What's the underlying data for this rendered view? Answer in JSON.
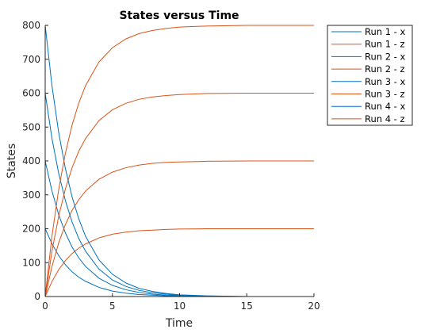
{
  "chart_data": {
    "type": "line",
    "title": "States versus Time",
    "xlabel": "Time",
    "ylabel": "States",
    "xlim": [
      0,
      20
    ],
    "ylim": [
      0,
      800
    ],
    "xticks": [
      0,
      5,
      10,
      15,
      20
    ],
    "yticks": [
      0,
      100,
      200,
      300,
      400,
      500,
      600,
      700,
      800
    ],
    "grid": false,
    "legend_position": "top-right, outside plot",
    "colors": {
      "x": "#0072BD",
      "z": "#D95319"
    },
    "series": [
      {
        "name": "Run 1 - x",
        "kind": "x",
        "x": [
          0,
          0.5,
          1,
          1.5,
          2,
          2.5,
          3,
          4,
          5,
          6,
          7,
          8,
          9,
          10,
          12,
          15,
          20
        ],
        "y": [
          200,
          156,
          121,
          94,
          73,
          57,
          45,
          27,
          16,
          10,
          6,
          4,
          2,
          1,
          0,
          0,
          0
        ]
      },
      {
        "name": "Run 1 - z",
        "kind": "z",
        "x": [
          0,
          0.5,
          1,
          1.5,
          2,
          2.5,
          3,
          4,
          5,
          6,
          7,
          8,
          9,
          10,
          12,
          15,
          20
        ],
        "y": [
          0,
          44,
          79,
          106,
          127,
          143,
          155,
          173,
          184,
          190,
          194,
          196,
          198,
          199,
          200,
          200,
          200
        ]
      },
      {
        "name": "Run 2 - x",
        "kind": "x",
        "x": [
          0,
          0.5,
          1,
          1.5,
          2,
          2.5,
          3,
          4,
          5,
          6,
          7,
          8,
          9,
          10,
          12,
          15,
          20
        ],
        "y": [
          400,
          312,
          242,
          188,
          146,
          114,
          89,
          54,
          33,
          20,
          12,
          7,
          4,
          3,
          1,
          0,
          0
        ]
      },
      {
        "name": "Run 2 - z",
        "kind": "z",
        "x": [
          0,
          0.5,
          1,
          1.5,
          2,
          2.5,
          3,
          4,
          5,
          6,
          7,
          8,
          9,
          10,
          12,
          15,
          20
        ],
        "y": [
          0,
          88,
          158,
          212,
          254,
          286,
          311,
          346,
          367,
          380,
          388,
          393,
          396,
          397,
          399,
          400,
          400
        ]
      },
      {
        "name": "Run 3 - x",
        "kind": "x",
        "x": [
          0,
          0.5,
          1,
          1.5,
          2,
          2.5,
          3,
          4,
          5,
          6,
          7,
          8,
          9,
          10,
          12,
          15,
          20
        ],
        "y": [
          600,
          467,
          364,
          283,
          220,
          171,
          134,
          81,
          49,
          30,
          18,
          11,
          7,
          4,
          1,
          0,
          0
        ]
      },
      {
        "name": "Run 3 - z",
        "kind": "z",
        "x": [
          0,
          0.5,
          1,
          1.5,
          2,
          2.5,
          3,
          4,
          5,
          6,
          7,
          8,
          9,
          10,
          12,
          15,
          20
        ],
        "y": [
          0,
          133,
          236,
          317,
          380,
          429,
          466,
          519,
          551,
          570,
          582,
          589,
          593,
          596,
          599,
          600,
          600
        ]
      },
      {
        "name": "Run 4 - x",
        "kind": "x",
        "x": [
          0,
          0.5,
          1,
          1.5,
          2,
          2.5,
          3,
          4,
          5,
          6,
          7,
          8,
          9,
          10,
          12,
          15,
          20
        ],
        "y": [
          800,
          623,
          485,
          378,
          294,
          229,
          178,
          108,
          66,
          40,
          24,
          15,
          9,
          5,
          2,
          0,
          0
        ]
      },
      {
        "name": "Run 4 - z",
        "kind": "z",
        "x": [
          0,
          0.5,
          1,
          1.5,
          2,
          2.5,
          3,
          4,
          5,
          6,
          7,
          8,
          9,
          10,
          12,
          15,
          20
        ],
        "y": [
          0,
          177,
          315,
          422,
          506,
          571,
          622,
          692,
          734,
          760,
          776,
          785,
          791,
          795,
          798,
          800,
          800
        ]
      }
    ]
  }
}
